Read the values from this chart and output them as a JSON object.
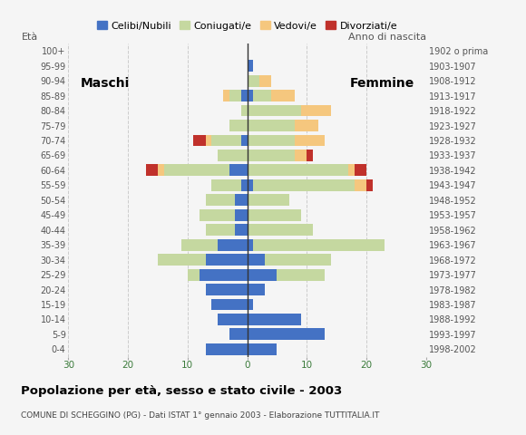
{
  "age_groups": [
    "0-4",
    "5-9",
    "10-14",
    "15-19",
    "20-24",
    "25-29",
    "30-34",
    "35-39",
    "40-44",
    "45-49",
    "50-54",
    "55-59",
    "60-64",
    "65-69",
    "70-74",
    "75-79",
    "80-84",
    "85-89",
    "90-94",
    "95-99",
    "100+"
  ],
  "birth_years": [
    "1998-2002",
    "1993-1997",
    "1988-1992",
    "1983-1987",
    "1978-1982",
    "1973-1977",
    "1968-1972",
    "1963-1967",
    "1958-1962",
    "1953-1957",
    "1948-1952",
    "1943-1947",
    "1938-1942",
    "1933-1937",
    "1928-1932",
    "1923-1927",
    "1918-1922",
    "1913-1917",
    "1908-1912",
    "1903-1907",
    "1902 o prima"
  ],
  "males": {
    "celibe": [
      7,
      3,
      5,
      6,
      7,
      8,
      7,
      5,
      2,
      2,
      2,
      1,
      3,
      0,
      1,
      0,
      0,
      1,
      0,
      0,
      0
    ],
    "coniugato": [
      0,
      0,
      0,
      0,
      0,
      2,
      8,
      6,
      5,
      6,
      5,
      5,
      11,
      5,
      5,
      3,
      1,
      2,
      0,
      0,
      0
    ],
    "vedovo": [
      0,
      0,
      0,
      0,
      0,
      0,
      0,
      0,
      0,
      0,
      0,
      0,
      1,
      0,
      1,
      0,
      0,
      1,
      0,
      0,
      0
    ],
    "divorziato": [
      0,
      0,
      0,
      0,
      0,
      0,
      0,
      0,
      0,
      0,
      0,
      0,
      2,
      0,
      2,
      0,
      0,
      0,
      0,
      0,
      0
    ]
  },
  "females": {
    "nubile": [
      5,
      13,
      9,
      1,
      3,
      5,
      3,
      1,
      0,
      0,
      0,
      1,
      0,
      0,
      0,
      0,
      0,
      1,
      0,
      1,
      0
    ],
    "coniugata": [
      0,
      0,
      0,
      0,
      0,
      8,
      11,
      22,
      11,
      9,
      7,
      17,
      17,
      8,
      8,
      8,
      9,
      3,
      2,
      0,
      0
    ],
    "vedova": [
      0,
      0,
      0,
      0,
      0,
      0,
      0,
      0,
      0,
      0,
      0,
      2,
      1,
      2,
      5,
      4,
      5,
      4,
      2,
      0,
      0
    ],
    "divorziata": [
      0,
      0,
      0,
      0,
      0,
      0,
      0,
      0,
      0,
      0,
      0,
      1,
      2,
      1,
      0,
      0,
      0,
      0,
      0,
      0,
      0
    ]
  },
  "color_celibe": "#4472c4",
  "color_coniugato": "#c5d8a0",
  "color_vedovo": "#f5c77e",
  "color_divorziato": "#c0312b",
  "xlim": 30,
  "title": "Popolazione per età, sesso e stato civile - 2003",
  "subtitle": "COMUNE DI SCHEGGINO (PG) - Dati ISTAT 1° gennaio 2003 - Elaborazione TUTTITALIA.IT",
  "ylabel_left": "Età",
  "ylabel_right": "Anno di nascita",
  "label_maschi": "Maschi",
  "label_femmine": "Femmine",
  "legend_labels": [
    "Celibi/Nubili",
    "Coniugati/e",
    "Vedovi/e",
    "Divorziati/e"
  ],
  "bg_color": "#f5f5f5"
}
